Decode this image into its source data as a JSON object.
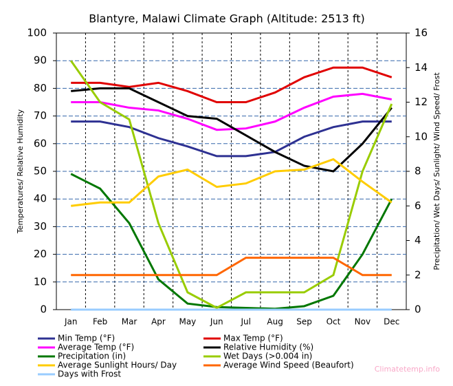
{
  "chart_data": {
    "type": "line",
    "title": "Blantyre, Malawi Climate Graph (Altitude: 2513 ft)",
    "ylabel": "Temperatures/ Relative Humidity",
    "y2label": "Precipitation/ Wet Days/ Sunlight/ Wind Speed/ Frost",
    "watermark": "Climatetemp.info",
    "categories": [
      "Jan",
      "Feb",
      "Mar",
      "Apr",
      "May",
      "Jun",
      "Jul",
      "Aug",
      "Sep",
      "Oct",
      "Nov",
      "Dec"
    ],
    "ylim": [
      0,
      100
    ],
    "yticks": [
      0,
      10,
      20,
      30,
      40,
      50,
      60,
      70,
      80,
      90,
      100
    ],
    "y2lim": [
      0,
      16
    ],
    "y2ticks": [
      0,
      2,
      4,
      6,
      8,
      10,
      12,
      14,
      16
    ],
    "grid": true,
    "series": [
      {
        "name": "Min Temp (°F)",
        "color": "#2e3192",
        "values": [
          68,
          68,
          66,
          62,
          59,
          55.5,
          55.5,
          57,
          62.5,
          66,
          68,
          68
        ]
      },
      {
        "name": "Max Temp (°F)",
        "color": "#e00000",
        "values": [
          82,
          82,
          80.5,
          82,
          79,
          75,
          75,
          78.5,
          84,
          87.5,
          87.5,
          84
        ]
      },
      {
        "name": "Average Temp (°F)",
        "color": "#ff00ff",
        "values": [
          75,
          75,
          73,
          72,
          69,
          65,
          65.5,
          68,
          73,
          77,
          78,
          76
        ]
      },
      {
        "name": "Relative Humidity (%)",
        "color": "#000000",
        "values": [
          79,
          80,
          80,
          75,
          70,
          69,
          63,
          57,
          52,
          50,
          60,
          73
        ]
      },
      {
        "name": "Precipitation (in)",
        "color": "#007700",
        "axis": "y2",
        "values": [
          7.85,
          7.0,
          5.0,
          1.75,
          0.35,
          0.15,
          0.1,
          0.05,
          0.2,
          0.8,
          3.2,
          6.4
        ]
      },
      {
        "name": "Wet Days (>0.004 in)",
        "color": "#99cc00",
        "axis": "y2",
        "values": [
          14.4,
          12,
          11,
          5,
          1,
          0.1,
          1,
          1,
          1,
          2,
          8,
          11.9
        ]
      },
      {
        "name": "Average Sunlight Hours/ Day",
        "color": "#ffcc00",
        "axis": "y2",
        "values": [
          6,
          6.2,
          6.2,
          7.7,
          8.1,
          7.1,
          7.3,
          8,
          8.1,
          8.7,
          7.4,
          6.2
        ]
      },
      {
        "name": "Average Wind Speed (Beaufort)",
        "color": "#ff6600",
        "axis": "y2",
        "values": [
          2,
          2,
          2,
          2,
          2,
          2,
          3,
          3,
          3,
          3,
          2,
          2
        ]
      },
      {
        "name": "Days with Frost",
        "color": "#99ccff",
        "axis": "y2",
        "values": [
          0,
          0,
          0,
          0,
          0,
          0,
          0,
          0,
          0,
          0,
          0,
          0
        ]
      }
    ]
  }
}
